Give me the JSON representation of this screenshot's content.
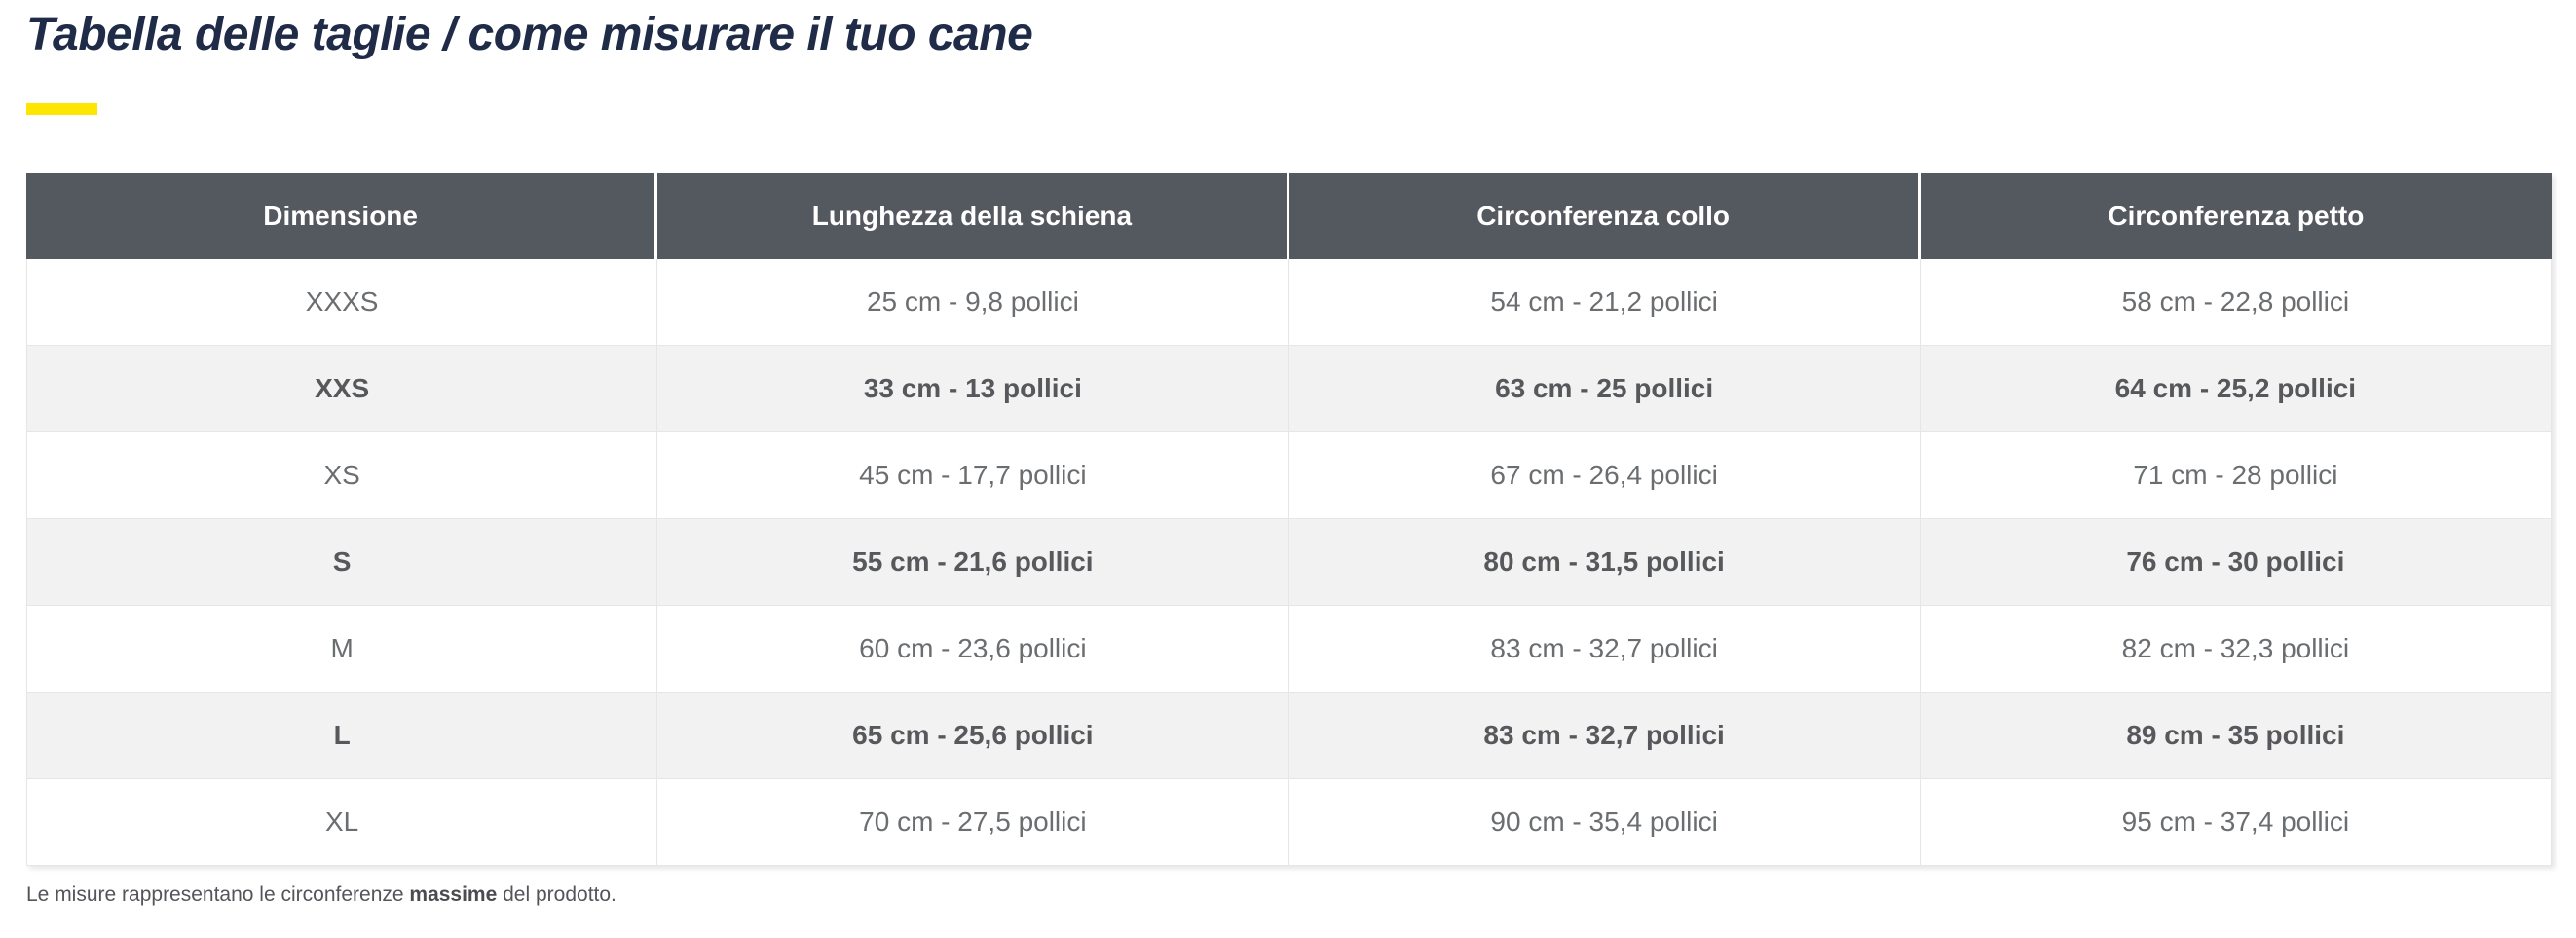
{
  "title": "Tabella delle taglie / come misurare il tuo cane",
  "colors": {
    "title_text": "#1f2b47",
    "accent_bar": "#ffe600",
    "header_bg": "#54585f",
    "header_text": "#ffffff",
    "row_alt_bg": "#f2f2f2",
    "body_text": "#6b6e71",
    "border": "#e6e6e6"
  },
  "table": {
    "headers": [
      "Dimensione",
      "Lunghezza della schiena",
      "Circonferenza collo",
      "Circonferenza petto"
    ],
    "rows": [
      {
        "size": "XXXS",
        "back_length": "25 cm - 9,8 pollici",
        "neck": "54 cm - 21,2 pollici",
        "chest": "58 cm - 22,8 pollici"
      },
      {
        "size": "XXS",
        "back_length": "33 cm - 13 pollici",
        "neck": "63 cm - 25 pollici",
        "chest": "64 cm - 25,2 pollici"
      },
      {
        "size": "XS",
        "back_length": "45 cm - 17,7 pollici",
        "neck": "67 cm - 26,4 pollici",
        "chest": "71 cm - 28 pollici"
      },
      {
        "size": "S",
        "back_length": "55 cm - 21,6 pollici",
        "neck": "80 cm - 31,5 pollici",
        "chest": "76 cm - 30 pollici"
      },
      {
        "size": "M",
        "back_length": "60 cm - 23,6 pollici",
        "neck": "83 cm - 32,7 pollici",
        "chest": "82 cm - 32,3 pollici"
      },
      {
        "size": "L",
        "back_length": "65 cm - 25,6 pollici",
        "neck": "83 cm - 32,7 pollici",
        "chest": "89 cm - 35 pollici"
      },
      {
        "size": "XL",
        "back_length": "70 cm - 27,5 pollici",
        "neck": "90 cm - 35,4 pollici",
        "chest": "95 cm - 37,4 pollici"
      }
    ]
  },
  "note": {
    "prefix": "Le misure rappresentano le circonferenze ",
    "bold": "massime",
    "suffix": " del prodotto."
  }
}
